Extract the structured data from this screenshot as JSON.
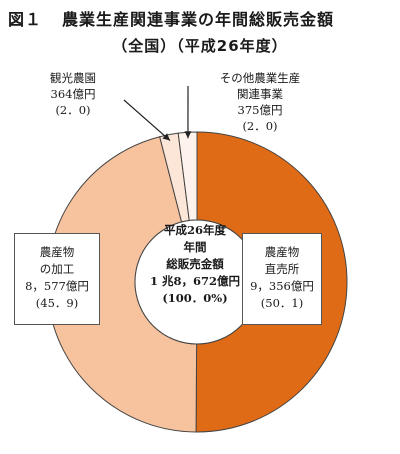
{
  "title": {
    "fig": "図１",
    "text": "農業生産関連事業の年間総販売金額"
  },
  "subtitle": "（全国）（平成26年度）",
  "chart_data": {
    "type": "pie",
    "variant": "donut",
    "start": "top",
    "direction": "clockwise",
    "slices": [
      {
        "lines": [
          "農産物",
          "直売所",
          "9，356億円",
          "(50．1)"
        ],
        "value": 9356,
        "percent": 50.1,
        "color": "#e06b16"
      },
      {
        "lines": [
          "農産物",
          "の加工",
          "8，577億円",
          "(45．9)"
        ],
        "value": 8577,
        "percent": 45.9,
        "color": "#f6c39e"
      },
      {
        "lines": [
          "観光農園",
          "364億円",
          "(2．0)"
        ],
        "value": 364,
        "percent": 2.0,
        "color": "#fbe6d7"
      },
      {
        "lines": [
          "その他農業生産",
          "関連事業",
          "375億円",
          "(2．0)"
        ],
        "value": 375,
        "percent": 2.0,
        "color": "#fdf3ec"
      }
    ],
    "center": [
      "平成26年度",
      "年間",
      "総販売金額",
      "1 兆8，672億円",
      "(100．0%)"
    ]
  }
}
